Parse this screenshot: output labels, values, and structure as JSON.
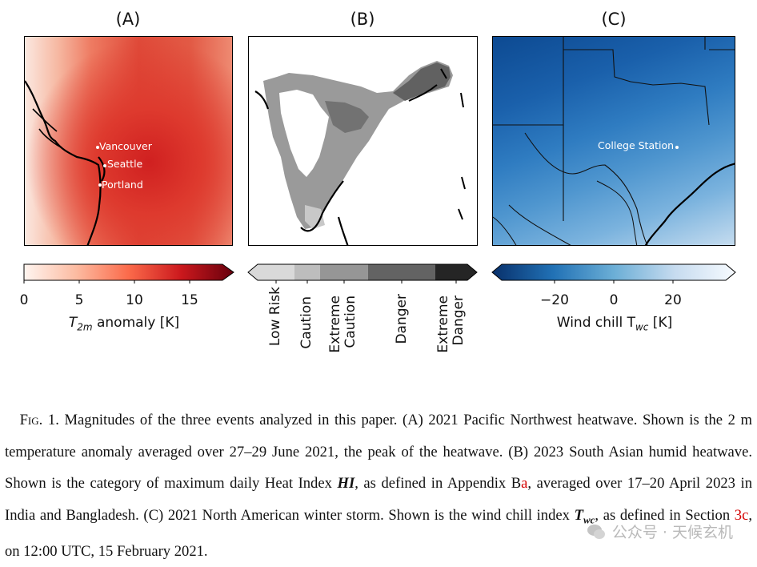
{
  "panels": {
    "a": {
      "label": "(A)",
      "cities": [
        "Vancouver",
        "Seattle",
        "Portland"
      ],
      "colorbar": {
        "ticks": [
          "0",
          "5",
          "10",
          "15"
        ],
        "label_main": "T",
        "label_sub": "2m",
        "label_rest": " anomaly [K]",
        "cmap": [
          "#fff5f0",
          "#fcbba1",
          "#fb6a4a",
          "#cb181d",
          "#67000d"
        ]
      }
    },
    "b": {
      "label": "(B)",
      "categories": [
        "Low Risk",
        "Caution",
        "Extreme\nCaution",
        "Danger",
        "Extreme\nDanger"
      ],
      "category_colors": [
        "#d9d9d9",
        "#bdbdbd",
        "#969696",
        "#636363",
        "#252525"
      ]
    },
    "c": {
      "label": "(C)",
      "city": "College Station",
      "colorbar": {
        "ticks": [
          "−20",
          "0",
          "20"
        ],
        "label_main": "Wind chill T",
        "label_sub": "wc",
        "label_rest": " [K]",
        "cmap": [
          "#08306b",
          "#2171b5",
          "#6baed6",
          "#c6dbef",
          "#f7fbff"
        ]
      }
    }
  },
  "caption": {
    "fig": "Fig. 1.",
    "part1": "Magnitudes of the three events analyzed in this paper. (A) 2021 Pacific Northwest heatwave. Shown is the 2 m temperature anomaly averaged over 27–29 June 2021, the peak of the heatwave. (B) 2023 South Asian humid heatwave. Shown is the category of maximum daily Heat Index ",
    "hi_symbol": "HI",
    "part2": ", as defined in Appendix B",
    "appendix_ref": "a",
    "part3": ", averaged over 17–20 April 2023 in India and Bangladesh. (C) 2021 North American winter storm. Shown is the wind chill index ",
    "twc_main": "T",
    "twc_sub": "wc",
    "part4": ", as defined in Section ",
    "section_ref": "3c",
    "part5": ", on 12:00 UTC, 15 February 2021."
  },
  "watermark": "公众号 · 天候玄机"
}
